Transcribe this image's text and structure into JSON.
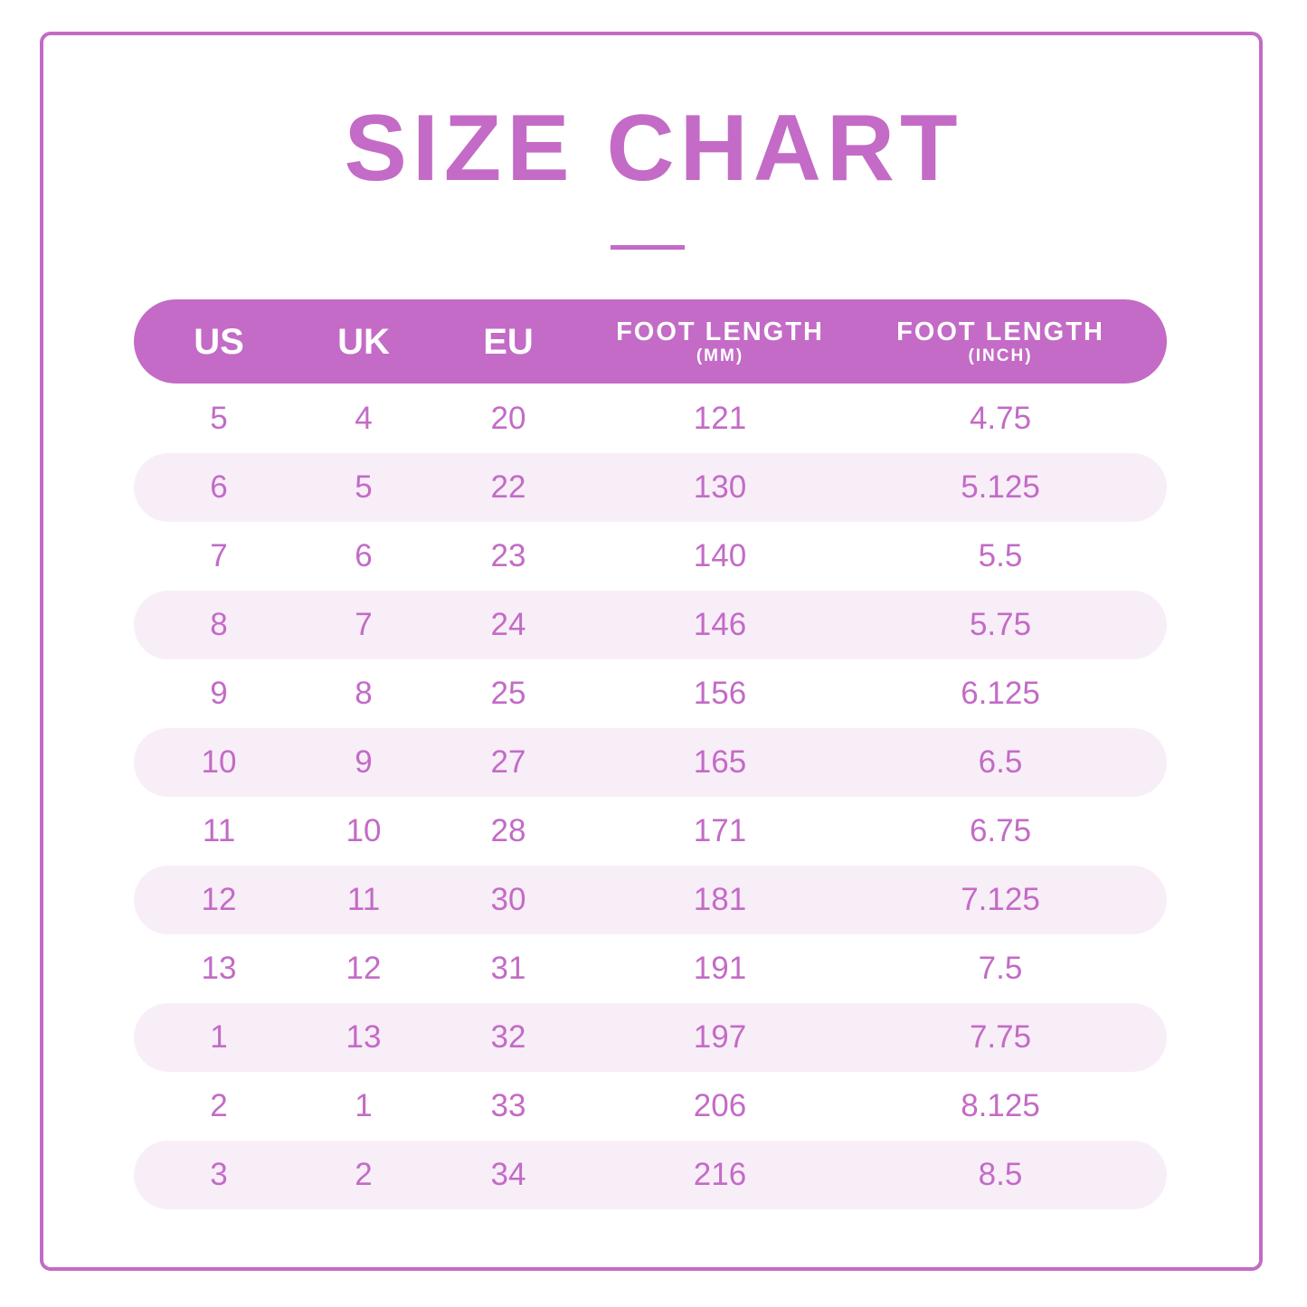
{
  "title": "SIZE CHART",
  "colors": {
    "accent": "#c36bc6",
    "row_shade": "#f8eef8",
    "background": "#ffffff"
  },
  "headers": [
    {
      "main": "US",
      "sub": ""
    },
    {
      "main": "UK",
      "sub": ""
    },
    {
      "main": "EU",
      "sub": ""
    },
    {
      "main": "FOOT LENGTH",
      "sub": "(MM)"
    },
    {
      "main": "FOOT LENGTH",
      "sub": "(INCH)"
    }
  ],
  "rows": [
    [
      "5",
      "4",
      "20",
      "121",
      "4.75"
    ],
    [
      "6",
      "5",
      "22",
      "130",
      "5.125"
    ],
    [
      "7",
      "6",
      "23",
      "140",
      "5.5"
    ],
    [
      "8",
      "7",
      "24",
      "146",
      "5.75"
    ],
    [
      "9",
      "8",
      "25",
      "156",
      "6.125"
    ],
    [
      "10",
      "9",
      "27",
      "165",
      "6.5"
    ],
    [
      "11",
      "10",
      "28",
      "171",
      "6.75"
    ],
    [
      "12",
      "11",
      "30",
      "181",
      "7.125"
    ],
    [
      "13",
      "12",
      "31",
      "191",
      "7.5"
    ],
    [
      "1",
      "13",
      "32",
      "197",
      "7.75"
    ],
    [
      "2",
      "1",
      "33",
      "206",
      "8.125"
    ],
    [
      "3",
      "2",
      "34",
      "216",
      "8.5"
    ]
  ]
}
